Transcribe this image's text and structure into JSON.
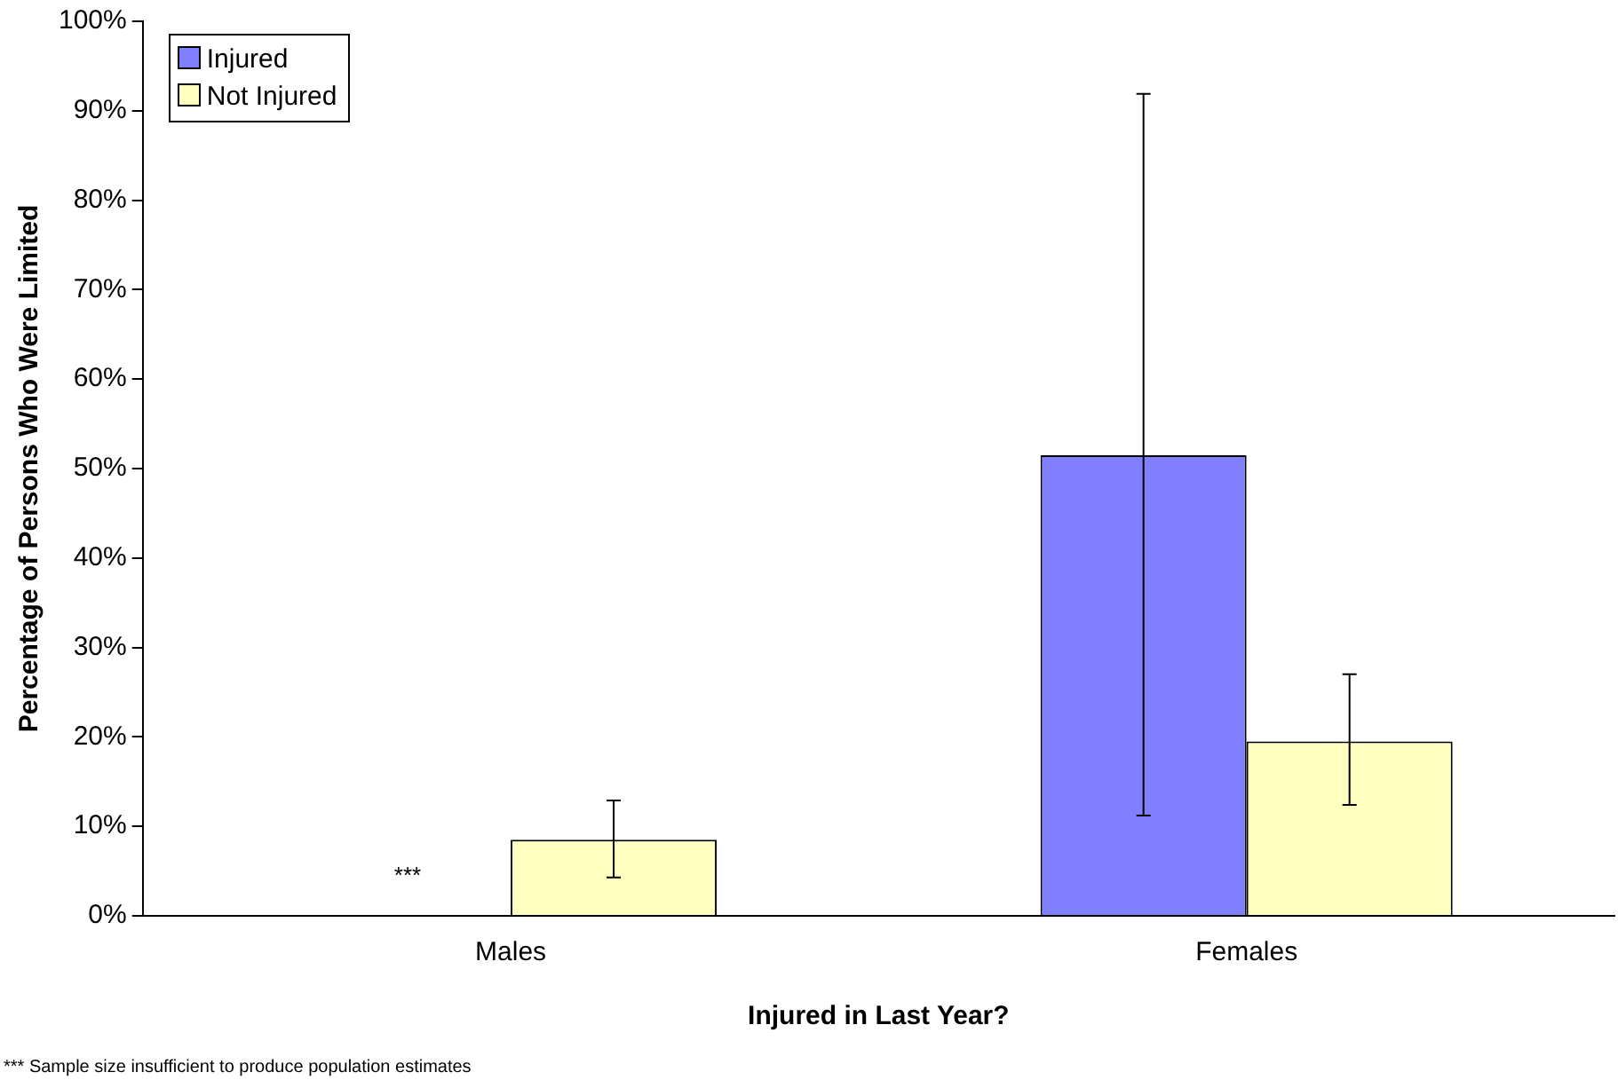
{
  "chart_data": {
    "type": "bar",
    "xlabel": "Injured in Last Year?",
    "ylabel": "Percentage of Persons Who Were Limited",
    "categories": [
      "Males",
      "Females"
    ],
    "series": [
      {
        "name": "Injured",
        "color": "#8080ff",
        "values": [
          0,
          51.5
        ],
        "errors": [
          null,
          [
            11.2,
            91.9
          ]
        ]
      },
      {
        "name": "Not Injured",
        "color": "#ffffc0",
        "values": [
          8.5,
          19.5
        ],
        "errors": [
          [
            4.3,
            12.9
          ],
          [
            12.4,
            27.0
          ]
        ]
      }
    ],
    "ylim": [
      0,
      100
    ],
    "yticks": [
      {
        "value": 0,
        "label": "0%"
      },
      {
        "value": 10,
        "label": "10%"
      },
      {
        "value": 20,
        "label": "20%"
      },
      {
        "value": 30,
        "label": "30%"
      },
      {
        "value": 40,
        "label": "40%"
      },
      {
        "value": 50,
        "label": "50%"
      },
      {
        "value": 60,
        "label": "60%"
      },
      {
        "value": 70,
        "label": "70%"
      },
      {
        "value": 80,
        "label": "80%"
      },
      {
        "value": 90,
        "label": "90%"
      },
      {
        "value": 100,
        "label": "100%"
      }
    ],
    "grid": false,
    "legend": "top left",
    "annotations": [
      "***",
      "*** Sample size insufficient to produce population estimates"
    ]
  }
}
